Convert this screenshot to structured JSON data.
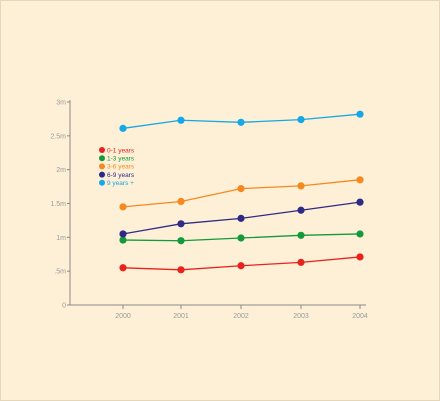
{
  "chart_data": {
    "type": "line",
    "x": [
      "2000",
      "2001",
      "2002",
      "2003",
      "2004"
    ],
    "y_ticks": [
      "0",
      ".5m",
      "1m",
      "1.5m",
      "2m",
      "2.5m",
      "3m"
    ],
    "ylim": [
      0,
      3
    ],
    "grid": false,
    "legend_position": "top-left",
    "series": [
      {
        "name": "0-1 years",
        "color": "#e8231e",
        "values": [
          0.55,
          0.52,
          0.58,
          0.63,
          0.71
        ]
      },
      {
        "name": "1-3 years",
        "color": "#139a3a",
        "values": [
          0.96,
          0.95,
          0.99,
          1.03,
          1.05
        ]
      },
      {
        "name": "3-6 years",
        "color": "#f5891f",
        "values": [
          1.45,
          1.53,
          1.72,
          1.76,
          1.85
        ]
      },
      {
        "name": "6-9 years",
        "color": "#2e2a86",
        "values": [
          1.05,
          1.2,
          1.28,
          1.4,
          1.52
        ]
      },
      {
        "name": "9 years +",
        "color": "#16a7e6",
        "values": [
          2.61,
          2.73,
          2.7,
          2.74,
          2.82
        ]
      }
    ]
  }
}
